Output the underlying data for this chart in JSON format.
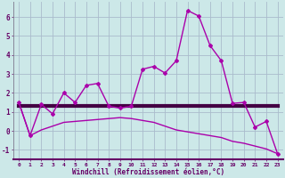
{
  "xlabel": "Windchill (Refroidissement éolien,°C)",
  "background_color": "#cce8e8",
  "grid_color": "#aabbcc",
  "line_color": "#aa00aa",
  "thick_line_color": "#440044",
  "x_values": [
    0,
    1,
    2,
    3,
    4,
    5,
    6,
    7,
    8,
    9,
    10,
    11,
    12,
    13,
    14,
    15,
    16,
    17,
    18,
    19,
    20,
    21,
    22,
    23
  ],
  "y_main": [
    1.5,
    -0.25,
    1.4,
    0.9,
    2.0,
    1.5,
    2.4,
    2.5,
    1.3,
    1.2,
    1.3,
    3.25,
    3.4,
    3.05,
    3.7,
    6.35,
    6.05,
    4.5,
    3.7,
    1.45,
    1.5,
    0.2,
    0.5,
    -1.2
  ],
  "y_flat": [
    1.3,
    1.3,
    1.3,
    1.3,
    1.3,
    1.3,
    1.3,
    1.3,
    1.3,
    1.3,
    1.3,
    1.3,
    1.3,
    1.3,
    1.3,
    1.3,
    1.3,
    1.3,
    1.3,
    1.3,
    1.3,
    1.3,
    1.3,
    1.3
  ],
  "y_trend": [
    1.5,
    -0.25,
    0.05,
    0.25,
    0.45,
    0.5,
    0.55,
    0.6,
    0.65,
    0.7,
    0.65,
    0.55,
    0.45,
    0.25,
    0.05,
    -0.05,
    -0.15,
    -0.25,
    -0.35,
    -0.55,
    -0.65,
    -0.8,
    -0.95,
    -1.2
  ],
  "ylim": [
    -1.5,
    6.8
  ],
  "xlim": [
    -0.5,
    23.5
  ],
  "yticks": [
    -1,
    0,
    1,
    2,
    3,
    4,
    5,
    6
  ]
}
